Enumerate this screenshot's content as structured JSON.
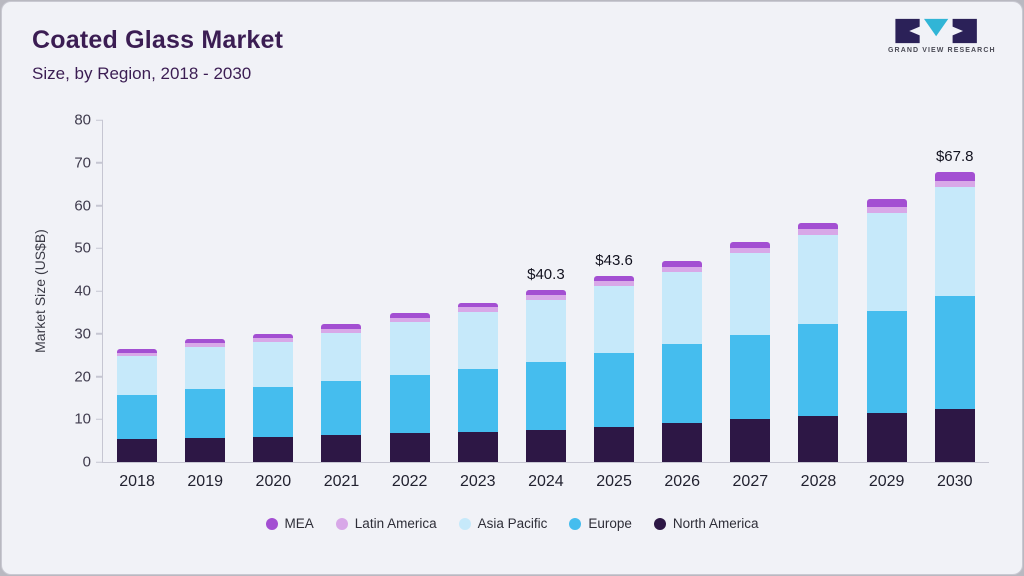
{
  "header": {
    "title": "Coated Glass Market",
    "subtitle": "Size, by Region, 2018 - 2030",
    "logo_text": "GRAND VIEW RESEARCH"
  },
  "theme": {
    "card_bg": "#f1f2f7",
    "title_color": "#3b1d53",
    "axis_color": "#c6c6d2"
  },
  "chart_data": {
    "type": "bar",
    "stacked": true,
    "title": "Coated Glass Market Size, by Region, 2018 - 2030",
    "xlabel": "",
    "ylabel": "Market Size (US$B)",
    "ylim": [
      0,
      80
    ],
    "yticks": [
      0,
      10,
      20,
      30,
      40,
      50,
      60,
      70,
      80
    ],
    "grid": false,
    "legend_position": "bottom",
    "categories": [
      "2018",
      "2019",
      "2020",
      "2021",
      "2022",
      "2023",
      "2024",
      "2025",
      "2026",
      "2027",
      "2028",
      "2029",
      "2030"
    ],
    "series": [
      {
        "name": "North America",
        "color": "#2d1745",
        "values": [
          5.3,
          5.6,
          5.9,
          6.3,
          6.7,
          7.1,
          7.6,
          8.3,
          9.1,
          10.0,
          10.8,
          11.5,
          12.5
        ]
      },
      {
        "name": "Europe",
        "color": "#45bdee",
        "values": [
          10.4,
          11.5,
          11.6,
          12.7,
          13.6,
          14.7,
          15.8,
          17.3,
          18.4,
          19.8,
          21.5,
          23.9,
          26.4
        ]
      },
      {
        "name": "Asia Pacific",
        "color": "#c6e9fa",
        "values": [
          9.0,
          9.9,
          10.5,
          11.2,
          12.4,
          13.4,
          14.6,
          15.6,
          17.0,
          19.0,
          20.7,
          22.9,
          25.4
        ]
      },
      {
        "name": "Latin America",
        "color": "#d8a8e8",
        "values": [
          0.8,
          0.8,
          0.9,
          0.9,
          1.0,
          1.0,
          1.1,
          1.1,
          1.2,
          1.3,
          1.4,
          1.4,
          1.5
        ]
      },
      {
        "name": "MEA",
        "color": "#a34fd2",
        "values": [
          1.0,
          1.0,
          1.0,
          1.1,
          1.1,
          1.1,
          1.2,
          1.3,
          1.3,
          1.4,
          1.6,
          1.8,
          2.0
        ]
      }
    ],
    "totals": [
      26.5,
      28.8,
      29.9,
      32.2,
      34.8,
      37.3,
      40.3,
      43.6,
      47.0,
      51.5,
      56.0,
      61.5,
      67.8
    ],
    "legend": [
      "MEA",
      "Latin America",
      "Asia Pacific",
      "Europe",
      "North America"
    ],
    "annotations": [
      {
        "category": "2024",
        "label": "$40.3"
      },
      {
        "category": "2025",
        "label": "$43.6"
      },
      {
        "category": "2030",
        "label": "$67.8"
      }
    ]
  }
}
